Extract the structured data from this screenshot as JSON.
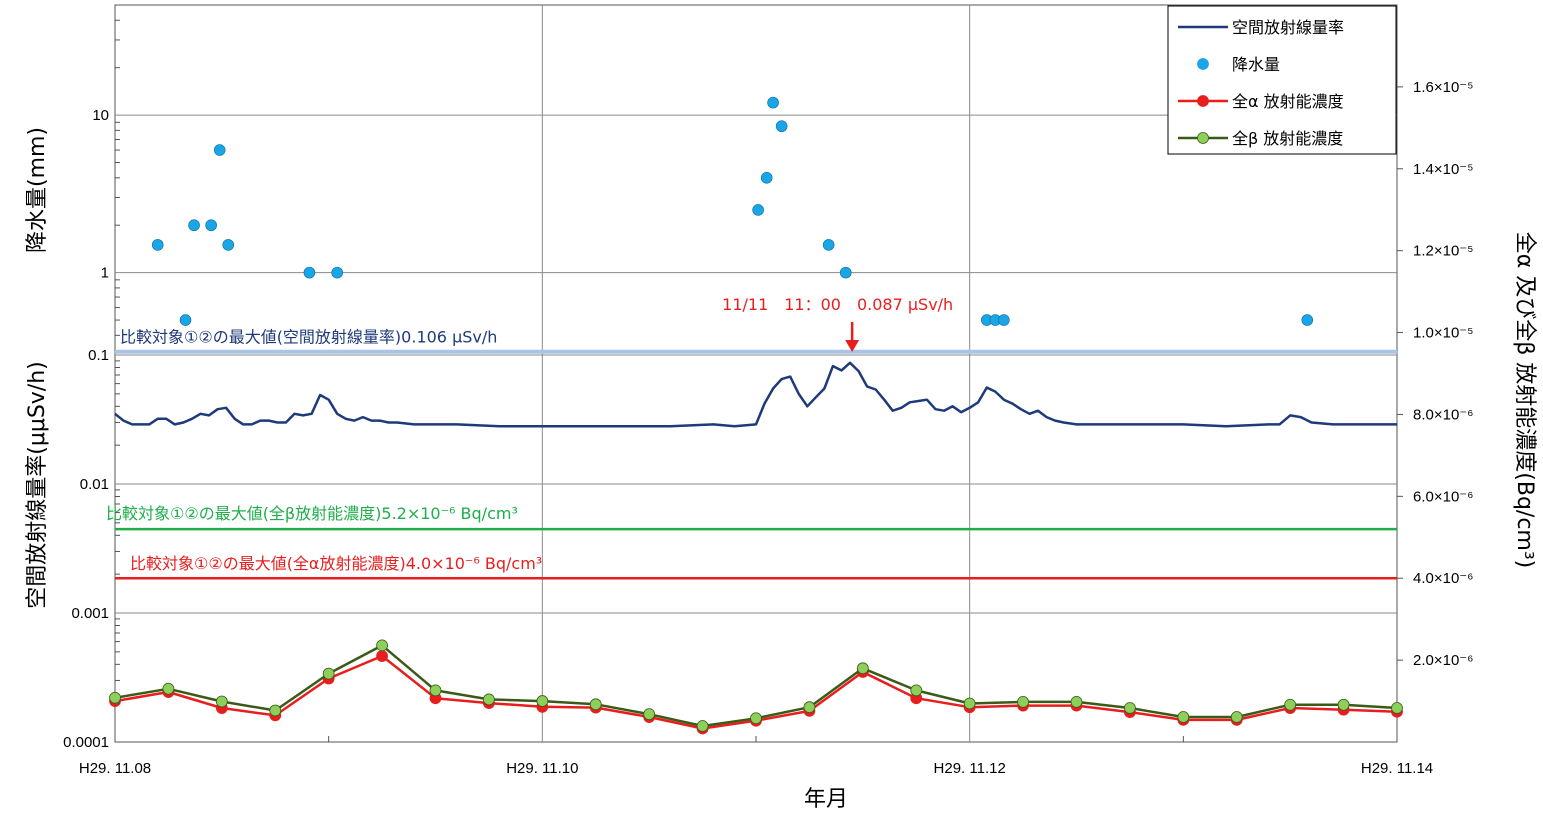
{
  "chart_data": {
    "type": "line",
    "xlabel": "年月",
    "ylabel_left_top": "降水量(mm)",
    "ylabel_left_bottom": "空間放射線量率(μμSv/h)",
    "ylabel_right": "全α 及び全β 放射能濃度(Bq/cm³)",
    "x_ticks": [
      "H29. 11.08",
      "H29. 11.10",
      "H29. 11.12",
      "H29. 11.14"
    ],
    "x_range_days": [
      0,
      6
    ],
    "precip_axis": {
      "scale": "log",
      "range": [
        0.3,
        50
      ],
      "ticks": [
        1,
        10
      ],
      "tick_labels": [
        "1",
        "10"
      ]
    },
    "dose_axis": {
      "scale": "log",
      "range": [
        0.0001,
        0.1
      ],
      "ticks": [
        0.0001,
        0.001,
        0.01,
        0.1
      ],
      "tick_labels": [
        "0.0001",
        "0.001",
        "0.01",
        "0.1"
      ]
    },
    "conc_axis": {
      "scale": "linear",
      "range": [
        0,
        1.8e-05
      ],
      "ticks": [
        2e-06,
        4e-06,
        6e-06,
        8e-06,
        1e-05,
        1.2e-05,
        1.4e-05,
        1.6e-05
      ],
      "tick_labels": [
        "2.0×10⁻⁶",
        "4.0×10⁻⁶",
        "6.0×10⁻⁶",
        "8.0×10⁻⁶",
        "1.0×10⁻⁵",
        "1.2×10⁻⁵",
        "1.4×10⁻⁵",
        "1.6×10⁻⁵"
      ]
    },
    "grid": true,
    "legend_position": "top-right",
    "legend": [
      {
        "name": "空間放射線量率",
        "color": "#1f3a7a",
        "marker": "line"
      },
      {
        "name": "降水量",
        "color": "#1aa6e6",
        "marker": "dot"
      },
      {
        "name": "全α 放射能濃度",
        "color": "#e81e1e",
        "marker": "line-dot"
      },
      {
        "name": "全β 放射能濃度",
        "color": "#3a5a18",
        "marker": "line-dot",
        "marker_color": "#8ccf5a"
      }
    ],
    "series": [
      {
        "name": "降水量",
        "color": "#1aa6e6",
        "x": [
          0.2,
          0.33,
          0.37,
          0.45,
          0.49,
          0.53,
          0.91,
          1.04,
          3.01,
          3.05,
          3.08,
          3.12,
          3.34,
          3.42,
          4.08,
          4.12,
          4.16,
          5.58
        ],
        "values": [
          1.5,
          0.5,
          2,
          2,
          6,
          1.5,
          1,
          1,
          2.5,
          4,
          12,
          8.5,
          1.5,
          1,
          0.5,
          0.5,
          0.5,
          0.5
        ]
      },
      {
        "name": "空間放射線量率",
        "color": "#1f3a7a",
        "x": [
          0,
          0.04,
          0.08,
          0.12,
          0.16,
          0.2,
          0.24,
          0.28,
          0.32,
          0.36,
          0.4,
          0.44,
          0.48,
          0.52,
          0.56,
          0.6,
          0.64,
          0.68,
          0.72,
          0.76,
          0.8,
          0.84,
          0.88,
          0.92,
          0.96,
          1.0,
          1.04,
          1.08,
          1.12,
          1.16,
          1.2,
          1.24,
          1.28,
          1.32,
          1.4,
          1.6,
          1.8,
          2.0,
          2.2,
          2.4,
          2.6,
          2.8,
          2.9,
          3.0,
          3.04,
          3.08,
          3.12,
          3.16,
          3.2,
          3.24,
          3.28,
          3.32,
          3.36,
          3.4,
          3.44,
          3.48,
          3.52,
          3.56,
          3.6,
          3.64,
          3.68,
          3.72,
          3.76,
          3.8,
          3.84,
          3.88,
          3.92,
          3.96,
          4.0,
          4.04,
          4.08,
          4.12,
          4.16,
          4.2,
          4.24,
          4.28,
          4.32,
          4.36,
          4.4,
          4.44,
          4.5,
          4.6,
          4.8,
          5.0,
          5.2,
          5.4,
          5.45,
          5.5,
          5.55,
          5.6,
          5.7,
          5.8,
          6.0
        ],
        "values": [
          0.035,
          0.031,
          0.029,
          0.029,
          0.029,
          0.032,
          0.032,
          0.029,
          0.03,
          0.032,
          0.035,
          0.034,
          0.038,
          0.039,
          0.032,
          0.029,
          0.029,
          0.031,
          0.031,
          0.03,
          0.03,
          0.035,
          0.034,
          0.035,
          0.049,
          0.045,
          0.035,
          0.032,
          0.031,
          0.033,
          0.031,
          0.031,
          0.03,
          0.03,
          0.029,
          0.029,
          0.028,
          0.028,
          0.028,
          0.028,
          0.028,
          0.029,
          0.028,
          0.029,
          0.042,
          0.055,
          0.065,
          0.068,
          0.05,
          0.04,
          0.047,
          0.055,
          0.082,
          0.076,
          0.087,
          0.075,
          0.057,
          0.054,
          0.045,
          0.037,
          0.039,
          0.043,
          0.044,
          0.045,
          0.038,
          0.037,
          0.04,
          0.036,
          0.039,
          0.043,
          0.056,
          0.052,
          0.045,
          0.042,
          0.038,
          0.035,
          0.037,
          0.033,
          0.031,
          0.03,
          0.029,
          0.029,
          0.029,
          0.029,
          0.028,
          0.029,
          0.029,
          0.034,
          0.033,
          0.03,
          0.029,
          0.029,
          0.029
        ]
      },
      {
        "name": "全α 放射能濃度",
        "color": "#e81e1e",
        "x": [
          0,
          0.25,
          0.5,
          0.75,
          1.0,
          1.25,
          1.5,
          1.75,
          2.0,
          2.25,
          2.5,
          2.75,
          3.0,
          3.25,
          3.5,
          3.75,
          4.0,
          4.25,
          4.5,
          4.75,
          5.0,
          5.25,
          5.5,
          5.75,
          6.0
        ],
        "values": [
          1e-06,
          1.22e-06,
          8.3e-07,
          6.5e-07,
          1.55e-06,
          2.1e-06,
          1.07e-06,
          9.5e-07,
          8.6e-07,
          8.4e-07,
          6.1e-07,
          3.3e-07,
          5.2e-07,
          7.6e-07,
          1.71e-06,
          1.07e-06,
          8.5e-07,
          8.9e-07,
          8.9e-07,
          7.3e-07,
          5.4e-07,
          5.4e-07,
          8.3e-07,
          7.9e-07,
          7.4e-07
        ]
      },
      {
        "name": "全β 放射能濃度",
        "color": "#3a5a18",
        "marker_color": "#8ccf5a",
        "x": [
          0,
          0.25,
          0.5,
          0.75,
          1.0,
          1.25,
          1.5,
          1.75,
          2.0,
          2.25,
          2.5,
          2.75,
          3.0,
          3.25,
          3.5,
          3.75,
          4.0,
          4.25,
          4.5,
          4.75,
          5.0,
          5.25,
          5.5,
          5.75,
          6.0
        ],
        "values": [
          1.08e-06,
          1.3e-06,
          9.9e-07,
          7.7e-07,
          1.67e-06,
          2.36e-06,
          1.26e-06,
          1.04e-06,
          1e-06,
          9.2e-07,
          6.8e-07,
          3.9e-07,
          5.8e-07,
          8.5e-07,
          1.8e-06,
          1.26e-06,
          9.4e-07,
          9.8e-07,
          9.8e-07,
          8.3e-07,
          6.1e-07,
          6.1e-07,
          9.1e-07,
          9.1e-07,
          8.3e-07
        ]
      }
    ],
    "reference_lines": [
      {
        "axis": "dose",
        "value": 0.106,
        "color": "#1f3a7a",
        "line_color": "#a9c4e6",
        "label": "比較対象①②の最大値(空間放射線量率)0.106 μSv/h"
      },
      {
        "axis": "conc",
        "value": 5.2e-06,
        "color": "#1fae4a",
        "line_color": "#1fae4a",
        "label": "比較対象①②の最大値(全β放射能濃度)5.2×10⁻⁶ Bq/cm³"
      },
      {
        "axis": "conc",
        "value": 4e-06,
        "color": "#e81e1e",
        "line_color": "#e81e1e",
        "label": "比較対象①②の最大値(全α放射能濃度)4.0×10⁻⁶ Bq/cm³"
      }
    ],
    "annotations": [
      {
        "text": "11/11　11：00　0.087 μSv/h",
        "x": 3.45,
        "value": 0.087,
        "color": "#e81e1e",
        "arrow": true
      }
    ]
  }
}
